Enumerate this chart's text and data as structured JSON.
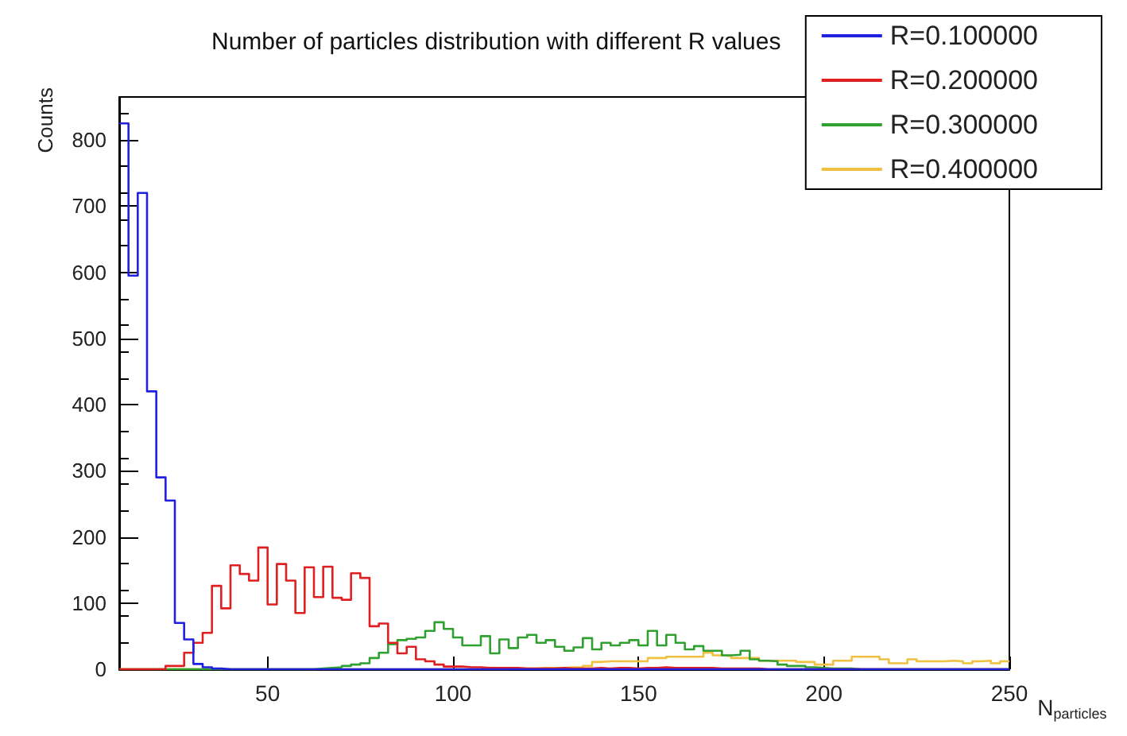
{
  "chart_data": {
    "type": "histogram",
    "title": "Number of particles distribution with different R values",
    "xlabel": "N$_{particles}$",
    "ylabel": "Counts",
    "bins": [
      10,
      12.5,
      15,
      17.5,
      20,
      22.5,
      25,
      27.5,
      30,
      32.5,
      35,
      37.5,
      40,
      42.5,
      45,
      47.5,
      50,
      52.5,
      55,
      57.5,
      60,
      62.5,
      65,
      67.5,
      70,
      72.5,
      75,
      77.5,
      80,
      82.5,
      85,
      87.5,
      90,
      92.5,
      95,
      97.5,
      100,
      102.5,
      105,
      107.5,
      110,
      112.5,
      115,
      117.5,
      120,
      122.5,
      125,
      127.5,
      130,
      132.5,
      135,
      137.5,
      140,
      142.5,
      145,
      147.5,
      150,
      152.5,
      155,
      157.5,
      160,
      162.5,
      165,
      167.5,
      170,
      172.5,
      175,
      177.5,
      180,
      182.5,
      185,
      187.5,
      190,
      192.5,
      195,
      197.5,
      200,
      202.5,
      205,
      207.5,
      210,
      212.5,
      215,
      217.5,
      220,
      222.5,
      225,
      227.5,
      230,
      232.5,
      235,
      237.5,
      240,
      242.5,
      245,
      247.5,
      250
    ],
    "series": [
      {
        "name": "R=0.100000",
        "color": "#2020e0",
        "values": [
          825,
          595,
          720,
          420,
          290,
          255,
          70,
          45,
          8,
          3,
          1,
          0,
          0,
          0,
          0,
          0,
          0,
          0,
          0,
          0,
          0,
          0,
          0,
          0,
          0,
          0,
          0,
          0,
          0,
          0,
          0,
          0,
          0,
          0,
          0,
          0,
          0,
          0,
          0,
          0,
          0,
          0,
          0,
          0,
          0,
          0,
          0,
          0,
          0,
          0,
          0,
          0,
          0,
          0,
          0,
          0,
          0,
          0,
          0,
          0,
          0,
          0,
          0,
          0,
          0,
          0,
          0,
          0,
          0,
          0,
          0,
          0,
          0,
          0,
          0,
          0,
          0,
          0,
          0,
          0,
          0,
          0,
          0,
          0,
          0,
          0,
          0,
          0,
          0,
          0,
          0,
          0,
          0,
          0,
          0,
          0
        ]
      },
      {
        "name": "R=0.200000",
        "color": "#e02020",
        "values": [
          0,
          0,
          0,
          0,
          0,
          5,
          5,
          25,
          40,
          55,
          126,
          92,
          157,
          144,
          134,
          184,
          98,
          159,
          134,
          85,
          154,
          109,
          155,
          108,
          105,
          145,
          138,
          65,
          69,
          40,
          24,
          34,
          15,
          12,
          7,
          4,
          4,
          3,
          3,
          2,
          2,
          2,
          2,
          1,
          1,
          1,
          1,
          2,
          1,
          1,
          1,
          2,
          1,
          2,
          2,
          1,
          2,
          2,
          3,
          2,
          2,
          2,
          2,
          2,
          1,
          1,
          1,
          1,
          1,
          0,
          0,
          0,
          0,
          0,
          0,
          0,
          0,
          0,
          0,
          0,
          0,
          0,
          0,
          0,
          0,
          0,
          0,
          0,
          0,
          0,
          0,
          0,
          0,
          0,
          0,
          0
        ]
      },
      {
        "name": "R=0.300000",
        "color": "#30a030",
        "values": [
          0,
          0,
          0,
          0,
          0,
          0,
          0,
          0,
          0,
          0,
          0,
          0,
          0,
          0,
          0,
          0,
          0,
          0,
          0,
          0,
          0,
          1,
          2,
          3,
          5,
          7,
          9,
          17,
          25,
          38,
          44,
          46,
          48,
          58,
          71,
          61,
          48,
          36,
          36,
          50,
          24,
          45,
          32,
          48,
          52,
          40,
          44,
          34,
          28,
          33,
          47,
          30,
          40,
          36,
          40,
          44,
          36,
          58,
          36,
          52,
          40,
          30,
          35,
          28,
          28,
          21,
          22,
          28,
          15,
          13,
          12,
          7,
          5,
          5,
          3,
          2,
          1,
          1,
          1,
          0,
          0,
          0,
          0,
          0,
          0,
          0,
          0,
          0,
          0,
          0,
          0,
          0,
          0,
          0,
          0,
          0
        ]
      },
      {
        "name": "R=0.400000",
        "color": "#f0c040",
        "values": [
          0,
          0,
          0,
          0,
          0,
          0,
          0,
          0,
          0,
          0,
          0,
          0,
          0,
          0,
          0,
          0,
          0,
          0,
          0,
          0,
          0,
          0,
          0,
          0,
          0,
          0,
          0,
          0,
          0,
          0,
          0,
          0,
          0,
          0,
          0,
          0,
          0,
          0,
          0,
          0,
          0,
          0,
          1,
          1,
          1,
          2,
          2,
          2,
          3,
          3,
          5,
          11,
          12,
          12,
          12,
          12,
          12,
          17,
          17,
          19,
          19,
          19,
          19,
          25,
          21,
          20,
          17,
          17,
          17,
          13,
          13,
          13,
          13,
          11,
          11,
          7,
          7,
          13,
          13,
          19,
          19,
          19,
          15,
          9,
          9,
          15,
          12,
          12,
          12,
          13,
          12,
          9,
          12,
          13,
          9,
          12
        ]
      }
    ],
    "xlim": [
      10,
      250
    ],
    "xticks": [
      50,
      100,
      150,
      200,
      250
    ],
    "ylim": [
      0,
      865
    ],
    "yticks": [
      0,
      100,
      200,
      300,
      400,
      500,
      600,
      700,
      800
    ],
    "legend": "top right"
  }
}
